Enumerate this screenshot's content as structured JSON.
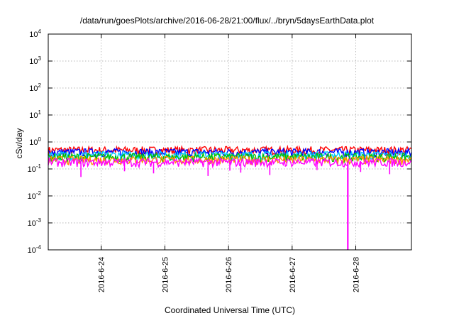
{
  "chart_data": {
    "type": "line",
    "title": "/data/run/goesPlots/archive/2016-06-28/21:00/flux/../bryn/5daysEarthData.plot",
    "xlabel": "Coordinated Universal Time (UTC)",
    "ylabel": "cSv/day",
    "y_scale": "log",
    "ylim": [
      0.0001,
      10000
    ],
    "y_tick_values": [
      0.0001,
      0.001,
      0.01,
      0.1,
      1,
      10,
      100,
      1000,
      10000
    ],
    "y_ticks": [
      {
        "base": "10",
        "exp": "-4"
      },
      {
        "base": "10",
        "exp": "-3"
      },
      {
        "base": "10",
        "exp": "-2"
      },
      {
        "base": "10",
        "exp": "-1"
      },
      {
        "base": "10",
        "exp": "0"
      },
      {
        "base": "10",
        "exp": "1"
      },
      {
        "base": "10",
        "exp": "2"
      },
      {
        "base": "10",
        "exp": "3"
      },
      {
        "base": "10",
        "exp": "4"
      }
    ],
    "x_range": [
      "2016-06-23 04:00",
      "2016-06-28 21:00"
    ],
    "x_ticks": [
      "2016-6-24",
      "2016-6-25",
      "2016-6-26",
      "2016-6-27",
      "2016-6-28"
    ],
    "grid": true,
    "legend": "none",
    "series": [
      {
        "color": "#ff0000",
        "x": [
          "2016-06-23 04:00",
          "2016-06-28 21:00"
        ],
        "y": [
          0.5,
          0.5
        ]
      },
      {
        "color": "#0000ff",
        "x": [
          "2016-06-23 04:00",
          "2016-06-28 21:00"
        ],
        "y": [
          0.42,
          0.42
        ]
      },
      {
        "color": "#00c8ff",
        "x": [
          "2016-06-23 04:00",
          "2016-06-28 21:00"
        ],
        "y": [
          0.33,
          0.33
        ]
      },
      {
        "color": "#00c000",
        "x": [
          "2016-06-23 04:00",
          "2016-06-28 21:00"
        ],
        "y": [
          0.28,
          0.28
        ]
      },
      {
        "color": "#ff8c00",
        "x": [
          "2016-06-23 04:00",
          "2016-06-28 21:00"
        ],
        "y": [
          0.22,
          0.22
        ]
      },
      {
        "color": "#ff00ff",
        "x": [
          "2016-06-23 04:00",
          "2016-06-28 21:00"
        ],
        "y": [
          0.18,
          0.18
        ]
      }
    ],
    "annotations": [
      {
        "series_color": "#ff00ff",
        "x": "2016-06-27 21:00",
        "y": 0.0001
      }
    ]
  }
}
